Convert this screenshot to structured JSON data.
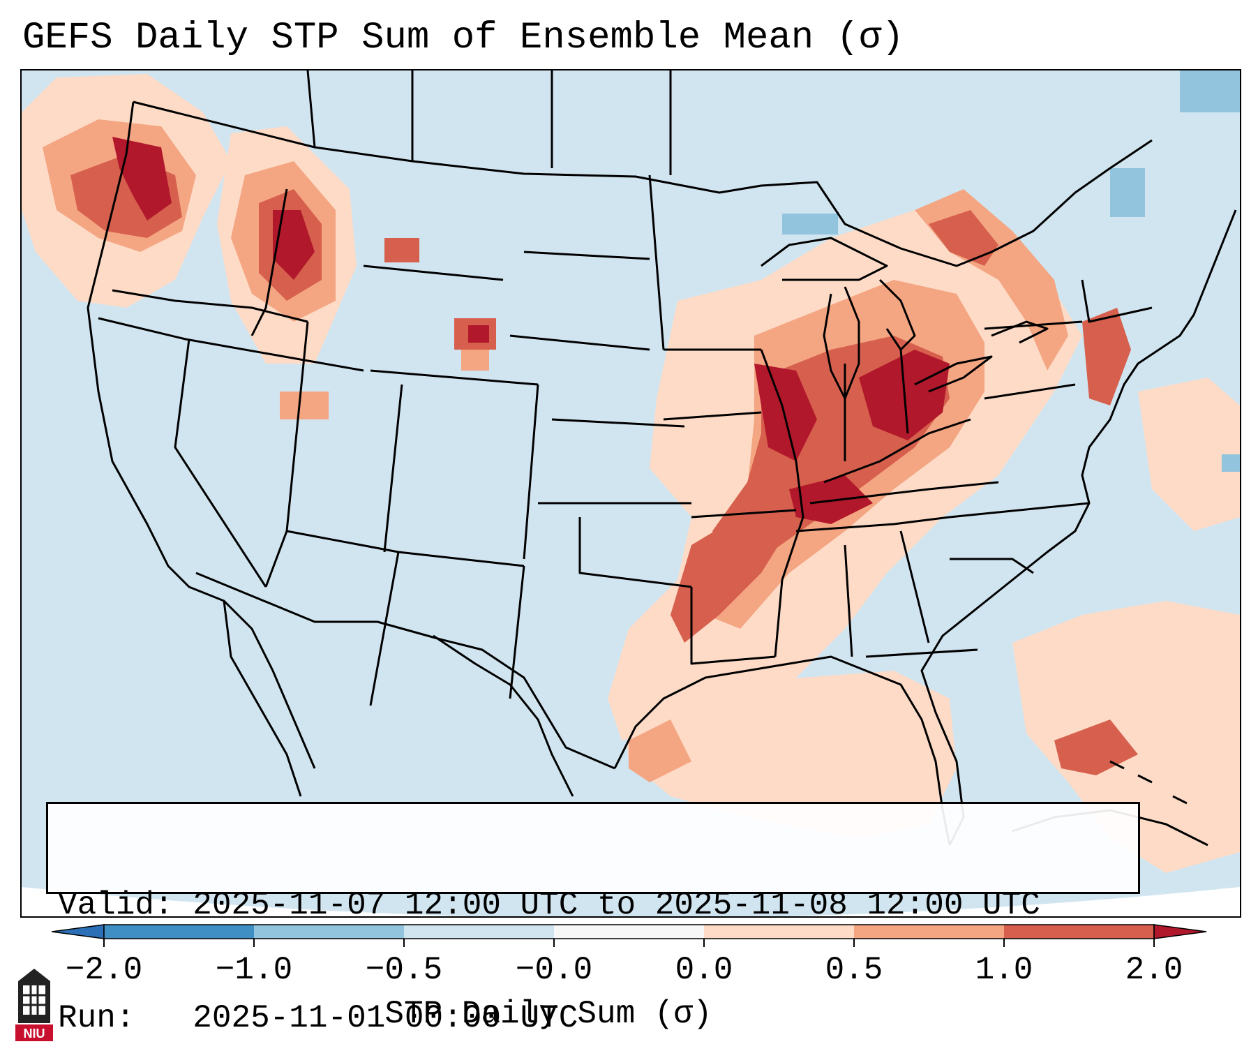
{
  "title": "GEFS Daily STP Sum of Ensemble Mean (σ)",
  "info": {
    "valid_label": "Valid:",
    "valid_value": "2025-11-07 12:00 UTC to 2025-11-08 12:00 UTC",
    "run_label": "Run:",
    "run_value": "2025-11-01 00:00 UTC"
  },
  "colorbar": {
    "label": "STP Daily Sum (σ)",
    "ticks": [
      "−2.0",
      "−1.0",
      "−0.5",
      "−0.0",
      "0.0",
      "0.5",
      "1.0",
      "2.0"
    ],
    "bins": [
      {
        "range": "below -2.0",
        "color": "#2b6fb6"
      },
      {
        "range": "-2.0 to -1.0",
        "color": "#3f8fc5"
      },
      {
        "range": "-1.0 to -0.5",
        "color": "#92c4de"
      },
      {
        "range": "-0.5 to -0.0",
        "color": "#d1e5f0"
      },
      {
        "range": "-0.0 to 0.0",
        "color": "#f7f7f7"
      },
      {
        "range": "0.0 to 0.5",
        "color": "#fddbc7"
      },
      {
        "range": "0.5 to 1.0",
        "color": "#f4a582"
      },
      {
        "range": "1.0 to 2.0",
        "color": "#d6604d"
      },
      {
        "range": "above 2.0",
        "color": "#b2182b"
      }
    ]
  },
  "map": {
    "background_color": "#d1e5f0",
    "boundary_color": "#000000"
  },
  "logo": {
    "text": "NIU",
    "icon": "niu-tower-icon",
    "color": "#c8102e"
  }
}
